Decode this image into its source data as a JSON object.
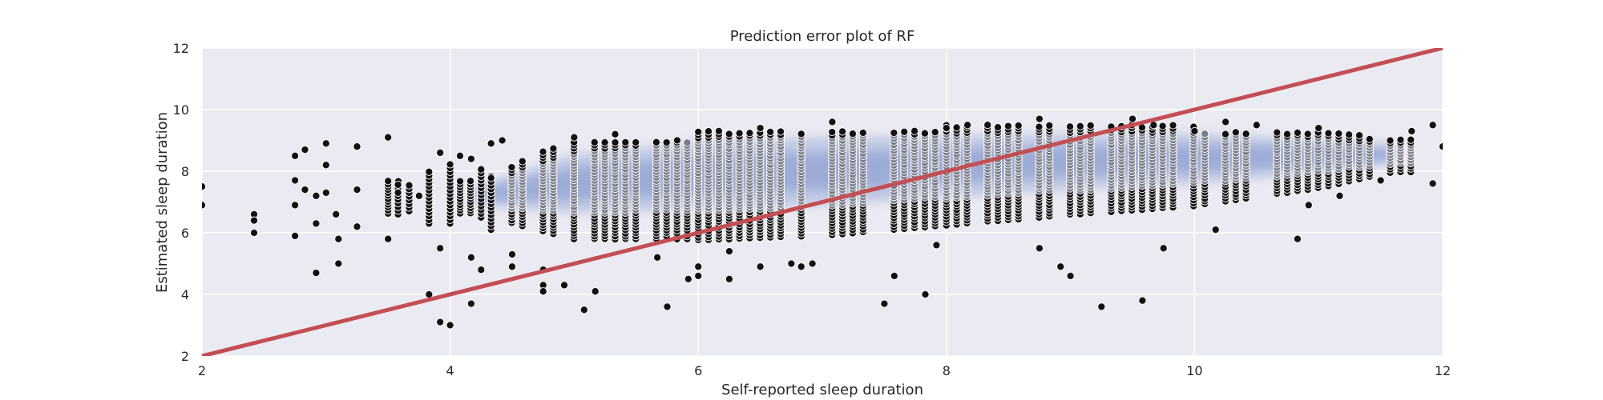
{
  "chart_data": {
    "type": "scatter",
    "title": "Prediction error plot of RF",
    "xlabel": "Self-reported sleep duration",
    "ylabel": "Estimated sleep duration",
    "xlim": [
      2,
      12
    ],
    "ylim": [
      2,
      12
    ],
    "x_ticks": [
      2,
      4,
      6,
      8,
      10,
      12
    ],
    "y_ticks": [
      2,
      4,
      6,
      8,
      10,
      12
    ],
    "grid": true,
    "legend": "none",
    "colors": {
      "background": "#eaeaf2",
      "grid": "#ffffff",
      "outer_points": "#111111",
      "inner_points": "#7a7d87",
      "point_edge": "#ffffff",
      "density_light": "#b9c3e3",
      "density_dark": "#4c72b0",
      "identity_line": "#c44e52"
    },
    "identity_line": {
      "x": [
        2,
        12
      ],
      "y": [
        2,
        12
      ]
    },
    "density_ridge": {
      "x": [
        4.2,
        5,
        6,
        7,
        8,
        9,
        10,
        11,
        11.6
      ],
      "center": [
        7.2,
        7.6,
        7.85,
        8.0,
        8.15,
        8.3,
        8.4,
        8.5,
        8.55
      ],
      "spread": [
        0.3,
        0.95,
        1.1,
        1.1,
        1.0,
        0.9,
        0.8,
        0.55,
        0.3
      ]
    },
    "outliers": [
      {
        "x": 2.0,
        "y": 7.5
      },
      {
        "x": 2.0,
        "y": 6.9
      },
      {
        "x": 2.42,
        "y": 6.6
      },
      {
        "x": 2.42,
        "y": 6.0
      },
      {
        "x": 2.42,
        "y": 6.4
      },
      {
        "x": 2.75,
        "y": 8.5
      },
      {
        "x": 2.75,
        "y": 7.7
      },
      {
        "x": 2.75,
        "y": 6.9
      },
      {
        "x": 2.75,
        "y": 5.9
      },
      {
        "x": 2.83,
        "y": 8.7
      },
      {
        "x": 2.83,
        "y": 7.4
      },
      {
        "x": 2.92,
        "y": 7.2
      },
      {
        "x": 2.92,
        "y": 6.3
      },
      {
        "x": 2.92,
        "y": 4.7
      },
      {
        "x": 3.0,
        "y": 8.9
      },
      {
        "x": 3.0,
        "y": 8.2
      },
      {
        "x": 3.0,
        "y": 7.3
      },
      {
        "x": 3.08,
        "y": 6.6
      },
      {
        "x": 3.1,
        "y": 5.8
      },
      {
        "x": 3.1,
        "y": 5.0
      },
      {
        "x": 3.25,
        "y": 8.8
      },
      {
        "x": 3.25,
        "y": 7.4
      },
      {
        "x": 3.25,
        "y": 6.2
      },
      {
        "x": 3.5,
        "y": 9.1
      },
      {
        "x": 3.5,
        "y": 5.8
      },
      {
        "x": 3.58,
        "y": 7.3
      },
      {
        "x": 3.75,
        "y": 7.2
      },
      {
        "x": 3.92,
        "y": 8.6
      },
      {
        "x": 3.92,
        "y": 5.5
      },
      {
        "x": 3.92,
        "y": 3.1
      },
      {
        "x": 3.83,
        "y": 4.0
      },
      {
        "x": 4.0,
        "y": 3.0
      },
      {
        "x": 4.08,
        "y": 8.5
      },
      {
        "x": 4.17,
        "y": 8.4
      },
      {
        "x": 4.17,
        "y": 5.2
      },
      {
        "x": 4.17,
        "y": 3.7
      },
      {
        "x": 4.25,
        "y": 4.8
      },
      {
        "x": 4.33,
        "y": 8.9
      },
      {
        "x": 4.42,
        "y": 9.0
      },
      {
        "x": 4.5,
        "y": 5.3
      },
      {
        "x": 4.5,
        "y": 4.9
      },
      {
        "x": 4.75,
        "y": 4.3
      },
      {
        "x": 4.75,
        "y": 4.8
      },
      {
        "x": 4.75,
        "y": 4.1
      },
      {
        "x": 4.92,
        "y": 4.3
      },
      {
        "x": 5.0,
        "y": 9.1
      },
      {
        "x": 5.08,
        "y": 3.5
      },
      {
        "x": 5.17,
        "y": 4.1
      },
      {
        "x": 5.33,
        "y": 9.2
      },
      {
        "x": 5.67,
        "y": 5.2
      },
      {
        "x": 5.75,
        "y": 3.6
      },
      {
        "x": 5.83,
        "y": 9.0
      },
      {
        "x": 6.0,
        "y": 4.9
      },
      {
        "x": 5.92,
        "y": 4.5
      },
      {
        "x": 6.0,
        "y": 4.6
      },
      {
        "x": 6.25,
        "y": 5.4
      },
      {
        "x": 6.25,
        "y": 4.5
      },
      {
        "x": 6.5,
        "y": 4.9
      },
      {
        "x": 6.5,
        "y": 9.4
      },
      {
        "x": 6.75,
        "y": 5.0
      },
      {
        "x": 6.83,
        "y": 4.9
      },
      {
        "x": 6.92,
        "y": 5.0
      },
      {
        "x": 7.08,
        "y": 9.6
      },
      {
        "x": 7.5,
        "y": 3.7
      },
      {
        "x": 7.58,
        "y": 4.6
      },
      {
        "x": 7.83,
        "y": 4.0
      },
      {
        "x": 7.92,
        "y": 5.6
      },
      {
        "x": 8.0,
        "y": 9.4
      },
      {
        "x": 8.17,
        "y": 9.5
      },
      {
        "x": 8.75,
        "y": 9.7
      },
      {
        "x": 8.75,
        "y": 5.5
      },
      {
        "x": 8.92,
        "y": 4.9
      },
      {
        "x": 9.0,
        "y": 4.6
      },
      {
        "x": 9.25,
        "y": 3.6
      },
      {
        "x": 9.5,
        "y": 9.7
      },
      {
        "x": 9.58,
        "y": 3.8
      },
      {
        "x": 9.75,
        "y": 5.5
      },
      {
        "x": 9.67,
        "y": 9.5
      },
      {
        "x": 10.0,
        "y": 9.3
      },
      {
        "x": 10.17,
        "y": 6.1
      },
      {
        "x": 10.25,
        "y": 9.6
      },
      {
        "x": 10.5,
        "y": 9.5
      },
      {
        "x": 10.83,
        "y": 5.8
      },
      {
        "x": 10.92,
        "y": 6.9
      },
      {
        "x": 11.0,
        "y": 9.4
      },
      {
        "x": 11.17,
        "y": 7.2
      },
      {
        "x": 11.5,
        "y": 7.7
      },
      {
        "x": 11.75,
        "y": 9.3
      },
      {
        "x": 11.92,
        "y": 9.5
      },
      {
        "x": 12.0,
        "y": 8.8
      },
      {
        "x": 11.92,
        "y": 7.6
      }
    ],
    "column_groups": [
      {
        "x_range": [
          3.5,
          4.5
        ],
        "step": 0.083,
        "y_low": 6.2,
        "y_high": 8.6,
        "density": 0.75
      },
      {
        "x_range": [
          4.5,
          6.0
        ],
        "step": 0.083,
        "y_low": 5.8,
        "y_high": 9.0,
        "density": 0.8
      },
      {
        "x_range": [
          6.0,
          8.0
        ],
        "step": 0.083,
        "y_low": 5.7,
        "y_high": 9.3,
        "density": 0.8
      },
      {
        "x_range": [
          8.0,
          10.0
        ],
        "step": 0.083,
        "y_low": 6.0,
        "y_high": 9.5,
        "density": 0.8
      },
      {
        "x_range": [
          10.0,
          11.95
        ],
        "step": 0.083,
        "y_low": 6.9,
        "y_high": 9.3,
        "density": 0.65
      }
    ]
  }
}
